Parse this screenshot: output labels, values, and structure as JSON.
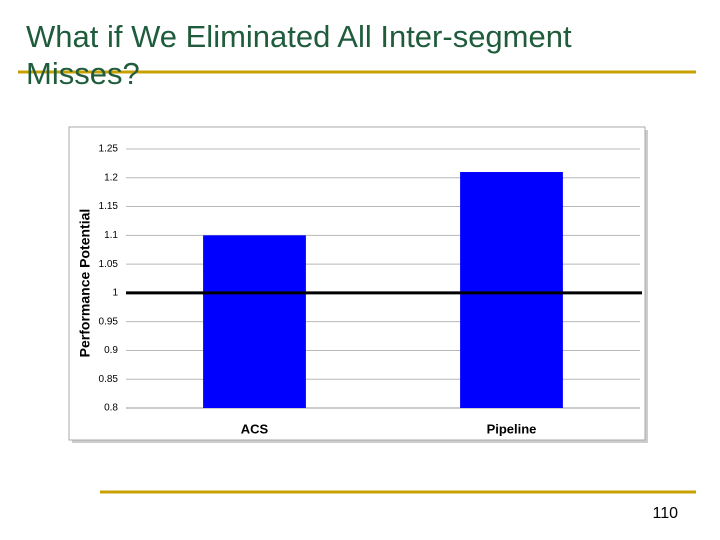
{
  "slide": {
    "title": "What if We Eliminated All Inter-segment Misses?",
    "page_number": "110"
  },
  "chart_data": {
    "type": "bar",
    "ylabel": "Performance Potential",
    "categories": [
      "ACS",
      "Pipeline"
    ],
    "values": [
      1.1,
      1.21
    ],
    "color": "#0000ff",
    "ylim": [
      0.8,
      1.25
    ],
    "yticks": [
      0.8,
      0.85,
      0.9,
      0.95,
      1,
      1.05,
      1.1,
      1.15,
      1.2,
      1.25
    ],
    "grid": true,
    "reference_line": 1
  }
}
